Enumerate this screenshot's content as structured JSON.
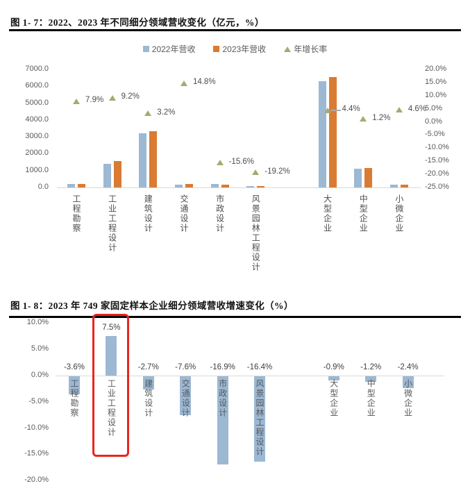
{
  "colors": {
    "blue": "#9CB8D3",
    "orange": "#D97B33",
    "olive": "#A6AA70",
    "red": "#E8251D",
    "axis_text": "#595959",
    "axis_line": "#D9D9D9"
  },
  "figure1": {
    "title": "图 1- 7：2022、2023 年不同细分领域营收变化（亿元，%）",
    "legend": [
      {
        "label": "2022年营收",
        "shape": "square",
        "color_key": "blue"
      },
      {
        "label": "2023年营收",
        "shape": "square",
        "color_key": "orange"
      },
      {
        "label": "年增长率",
        "shape": "triangle",
        "color_key": "olive"
      }
    ],
    "chart_data": {
      "type": "bar",
      "categories": [
        "工程勘察",
        "工业工程设计",
        "建筑设计",
        "交通设计",
        "市政设计",
        "风景园林工程设计",
        "大型企业",
        "中型企业",
        "小微企业"
      ],
      "slots": [
        0,
        1,
        2,
        3,
        4,
        5,
        7,
        8,
        9
      ],
      "total_slots": 10,
      "series": [
        {
          "name": "2022年营收",
          "color_key": "blue",
          "values": [
            195,
            1420,
            3230,
            175,
            190,
            80,
            6280,
            1120,
            150
          ]
        },
        {
          "name": "2023年营收",
          "color_key": "orange",
          "values": [
            210,
            1550,
            3330,
            200,
            160,
            65,
            6560,
            1135,
            157
          ]
        }
      ],
      "growth_series": {
        "name": "年增长率",
        "values": [
          7.9,
          9.2,
          3.2,
          14.8,
          -15.6,
          -19.2,
          4.4,
          1.2,
          4.6
        ],
        "labels": [
          "7.9%",
          "9.2%",
          "3.2%",
          "14.8%",
          "-15.6%",
          "-19.2%",
          "4.4%",
          "1.2%",
          "4.6%"
        ],
        "leader_index": 6
      },
      "left_axis": {
        "labels": [
          "7000.0",
          "6000.0",
          "5000.0",
          "4000.0",
          "3000.0",
          "2000.0",
          "1000.0",
          "0.0"
        ],
        "min": 0,
        "max": 7000
      },
      "right_axis": {
        "labels": [
          "20.0%",
          "15.0%",
          "10.0%",
          "5.0%",
          "0.0%",
          "-5.0%",
          "-10.0%",
          "-15.0%",
          "-20.0%",
          "-25.0%"
        ],
        "min": -25,
        "max": 20
      },
      "grid": "off",
      "legend_position": "top"
    }
  },
  "figure2": {
    "title": "图 1- 8：2023 年 749 家固定样本企业细分领域营收增速变化（%）",
    "chart_data": {
      "type": "bar",
      "categories": [
        "工程勘察",
        "工业工程设计",
        "建筑设计",
        "交通设计",
        "市政设计",
        "风景园林工程设计",
        "大型企业",
        "中型企业",
        "小微企业"
      ],
      "slots": [
        0,
        1,
        2,
        3,
        4,
        5,
        7,
        8,
        9
      ],
      "total_slots": 10,
      "values": [
        -3.6,
        7.5,
        -2.7,
        -7.6,
        -16.9,
        -16.4,
        -0.9,
        -1.2,
        -2.4
      ],
      "labels": [
        "-3.6%",
        "7.5%",
        "-2.7%",
        "-7.6%",
        "-16.9%",
        "-16.4%",
        "-0.9%",
        "-1.2%",
        "-2.4%"
      ],
      "bar_color_key": "blue",
      "axis": {
        "labels": [
          "10.0%",
          "5.0%",
          "0.0%",
          "-5.0%",
          "-10.0%",
          "-15.0%",
          "-20.0%"
        ],
        "min": -20,
        "max": 10
      },
      "highlight_index": 1,
      "grid": "off"
    }
  }
}
